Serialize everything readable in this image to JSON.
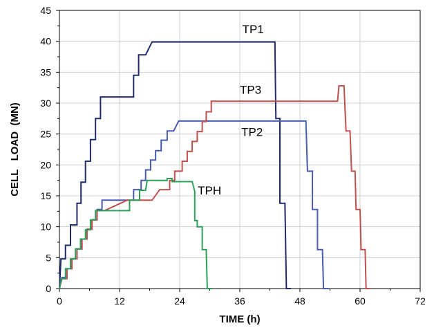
{
  "chart_data": {
    "type": "line",
    "title": "",
    "xlabel": "TIME (h)",
    "ylabel": "CELL   LOAD  (MN)",
    "xlim": [
      0,
      72
    ],
    "ylim": [
      0,
      45
    ],
    "xticks": [
      0,
      12,
      24,
      36,
      48,
      60,
      72
    ],
    "yticks": [
      0,
      5,
      10,
      15,
      20,
      25,
      30,
      35,
      40,
      45
    ],
    "grid": true,
    "legend": "none",
    "series": [
      {
        "name": "TP1",
        "color": "#1f2a6b",
        "points": [
          [
            0,
            0
          ],
          [
            0.3,
            4.8
          ],
          [
            1.2,
            4.8
          ],
          [
            1.2,
            7
          ],
          [
            2.2,
            7
          ],
          [
            2.2,
            10.3
          ],
          [
            3.5,
            10.3
          ],
          [
            3.5,
            13.8
          ],
          [
            4.3,
            13.8
          ],
          [
            4.3,
            17.2
          ],
          [
            5.2,
            17.2
          ],
          [
            5.2,
            20.6
          ],
          [
            6.2,
            20.6
          ],
          [
            6.2,
            24.1
          ],
          [
            7.2,
            24.1
          ],
          [
            7.2,
            27.5
          ],
          [
            8.2,
            27.5
          ],
          [
            8.2,
            31
          ],
          [
            14.8,
            31
          ],
          [
            14.8,
            34.5
          ],
          [
            15.8,
            34.5
          ],
          [
            15.8,
            37.8
          ],
          [
            17.2,
            37.8
          ],
          [
            18.5,
            39.9
          ],
          [
            43,
            39.9
          ],
          [
            43.2,
            27.5
          ],
          [
            44,
            27.5
          ],
          [
            44,
            13.8
          ],
          [
            45,
            13.8
          ],
          [
            45.3,
            0
          ],
          [
            46.2,
            0
          ]
        ]
      },
      {
        "name": "TP2",
        "color": "#4a5ab0",
        "points": [
          [
            0,
            0
          ],
          [
            0.5,
            1.8
          ],
          [
            1.5,
            1.8
          ],
          [
            1.5,
            3.2
          ],
          [
            2.5,
            3.2
          ],
          [
            2.5,
            4.8
          ],
          [
            3.5,
            4.8
          ],
          [
            3.5,
            6.4
          ],
          [
            4.5,
            6.4
          ],
          [
            4.5,
            8
          ],
          [
            5.5,
            8
          ],
          [
            5.5,
            9.6
          ],
          [
            6.5,
            9.6
          ],
          [
            6.5,
            11.1
          ],
          [
            7.5,
            11.1
          ],
          [
            7.5,
            12.8
          ],
          [
            8.5,
            12.8
          ],
          [
            8.5,
            14.3
          ],
          [
            14.8,
            14.3
          ],
          [
            14.8,
            16
          ],
          [
            16.3,
            16
          ],
          [
            16.3,
            17.5
          ],
          [
            17.2,
            17.5
          ],
          [
            17.2,
            19.2
          ],
          [
            18.2,
            19.2
          ],
          [
            18.2,
            20.8
          ],
          [
            19.2,
            20.8
          ],
          [
            19.2,
            22.3
          ],
          [
            20.3,
            22.3
          ],
          [
            20.3,
            24
          ],
          [
            21.5,
            24
          ],
          [
            21.5,
            25.5
          ],
          [
            22.8,
            25.5
          ],
          [
            23.8,
            27.1
          ],
          [
            49.2,
            27.1
          ],
          [
            49.5,
            19
          ],
          [
            50.5,
            19
          ],
          [
            50.5,
            12.8
          ],
          [
            51.5,
            12.8
          ],
          [
            51.5,
            6.3
          ],
          [
            52.5,
            6.3
          ],
          [
            52.7,
            0
          ],
          [
            53.7,
            0
          ]
        ]
      },
      {
        "name": "TP3",
        "color": "#c0504d",
        "points": [
          [
            0,
            0
          ],
          [
            0.5,
            1.6
          ],
          [
            1.5,
            1.6
          ],
          [
            1.5,
            3.2
          ],
          [
            2.5,
            3.2
          ],
          [
            2.5,
            4.8
          ],
          [
            3.5,
            4.8
          ],
          [
            3.5,
            6.4
          ],
          [
            4.5,
            6.4
          ],
          [
            4.5,
            8
          ],
          [
            5.5,
            8
          ],
          [
            5.5,
            9.6
          ],
          [
            6.5,
            9.6
          ],
          [
            6.5,
            11.1
          ],
          [
            7.5,
            11.1
          ],
          [
            7.5,
            12.6
          ],
          [
            9,
            12.6
          ],
          [
            13.5,
            14.3
          ],
          [
            18.5,
            14.3
          ],
          [
            20,
            16
          ],
          [
            22,
            16
          ],
          [
            22,
            17.5
          ],
          [
            23,
            17.5
          ],
          [
            23,
            19
          ],
          [
            24.5,
            19
          ],
          [
            24.5,
            20.6
          ],
          [
            25.5,
            20.6
          ],
          [
            25.5,
            22.2
          ],
          [
            26.5,
            22.2
          ],
          [
            26.5,
            23.8
          ],
          [
            27.5,
            23.8
          ],
          [
            27.5,
            25.4
          ],
          [
            28.5,
            25.4
          ],
          [
            28.5,
            27
          ],
          [
            29.3,
            27
          ],
          [
            29.3,
            28.6
          ],
          [
            30.3,
            28.6
          ],
          [
            30.3,
            30.3
          ],
          [
            55.5,
            30.3
          ],
          [
            55.8,
            32.8
          ],
          [
            56.8,
            32.8
          ],
          [
            57.2,
            25.5
          ],
          [
            58,
            25.5
          ],
          [
            58.3,
            19
          ],
          [
            59,
            19
          ],
          [
            59.2,
            12.8
          ],
          [
            60,
            12.8
          ],
          [
            60.2,
            6.3
          ],
          [
            61,
            6.3
          ],
          [
            61.2,
            0
          ],
          [
            62,
            0
          ]
        ]
      },
      {
        "name": "TPH",
        "color": "#2ca05a",
        "points": [
          [
            0,
            0
          ],
          [
            0.4,
            1.6
          ],
          [
            1.2,
            1.6
          ],
          [
            1.2,
            3.2
          ],
          [
            2.2,
            3.2
          ],
          [
            2.2,
            4.8
          ],
          [
            3.2,
            4.8
          ],
          [
            3.2,
            6.4
          ],
          [
            4.2,
            6.4
          ],
          [
            4.2,
            8
          ],
          [
            5.2,
            8
          ],
          [
            5.2,
            9.5
          ],
          [
            6.2,
            9.5
          ],
          [
            6.2,
            11.1
          ],
          [
            7.2,
            11.1
          ],
          [
            7.2,
            12.6
          ],
          [
            14,
            12.6
          ],
          [
            14,
            14.3
          ],
          [
            16,
            14.3
          ],
          [
            16,
            15.9
          ],
          [
            17.2,
            15.9
          ],
          [
            17.5,
            17.5
          ],
          [
            21.5,
            17.5
          ],
          [
            21.5,
            17.8
          ],
          [
            22.5,
            17.8
          ],
          [
            22.5,
            17.3
          ],
          [
            26.5,
            17.3
          ],
          [
            27,
            15.7
          ],
          [
            27,
            11
          ],
          [
            27.5,
            11
          ],
          [
            27.5,
            10
          ],
          [
            28.5,
            10
          ],
          [
            28.5,
            6.3
          ],
          [
            29.3,
            6.3
          ],
          [
            29.5,
            0
          ],
          [
            30.5,
            0
          ]
        ]
      }
    ],
    "labels": [
      {
        "text": "TP1",
        "x": 36.5,
        "y": 41.3
      },
      {
        "text": "TP3",
        "x": 36,
        "y": 31.5
      },
      {
        "text": "TP2",
        "x": 36.3,
        "y": 24.7
      },
      {
        "text": "TPH",
        "x": 27.6,
        "y": 15.2
      }
    ]
  }
}
